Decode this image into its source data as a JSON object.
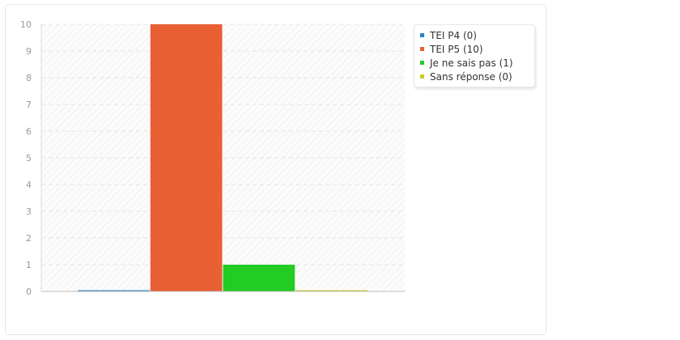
{
  "chart_data": {
    "type": "bar",
    "title": "",
    "xlabel": "",
    "ylabel": "",
    "ylim": [
      0,
      10
    ],
    "yticks": [
      0,
      1,
      2,
      3,
      4,
      5,
      6,
      7,
      8,
      9,
      10
    ],
    "grid": true,
    "legend_position": "top-right",
    "series": [
      {
        "name": "TEI P4 (0)",
        "value": 0,
        "color": "#2584c8"
      },
      {
        "name": "TEI P5 (10)",
        "value": 10,
        "color": "#e86034"
      },
      {
        "name": "Je ne sais pas (1)",
        "value": 1,
        "color": "#22cc22"
      },
      {
        "name": "Sans réponse (0)",
        "value": 0,
        "color": "#cccc22"
      }
    ]
  }
}
